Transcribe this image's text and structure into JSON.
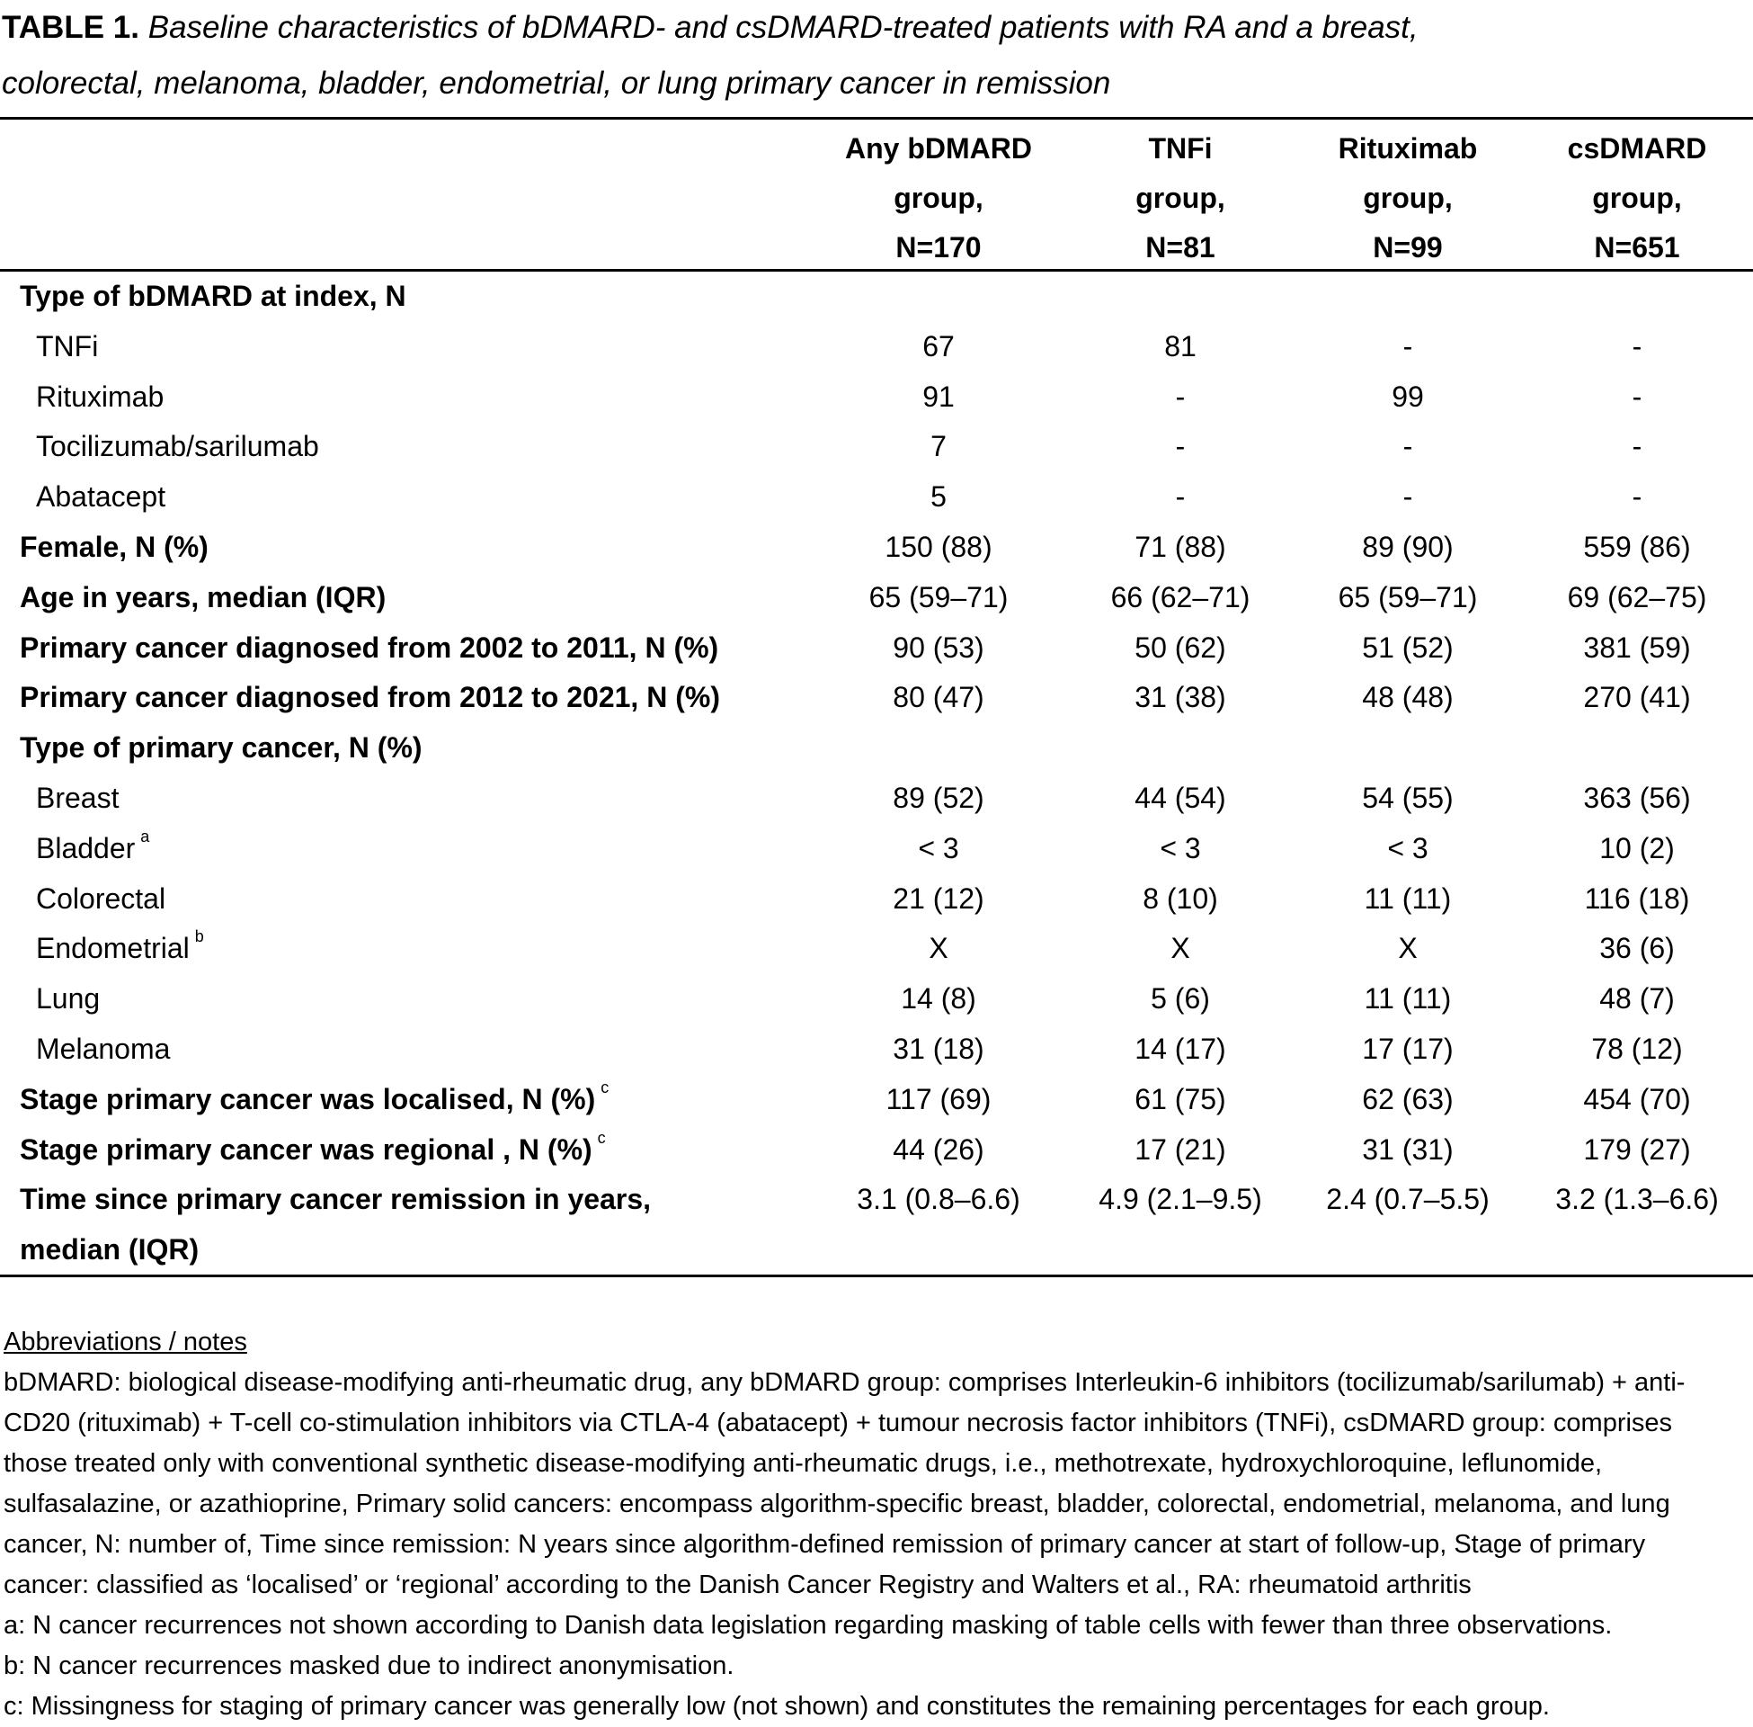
{
  "title": {
    "label": "TABLE 1.",
    "text_line1": "Baseline characteristics of bDMARD- and csDMARD-treated patients with RA and a breast,",
    "text_line2": "colorectal, melanoma, bladder, endometrial, or lung primary cancer in remission"
  },
  "columns": [
    {
      "line1": "Any bDMARD",
      "line2": "group,",
      "line3": "N=170"
    },
    {
      "line1": "TNFi",
      "line2": "group,",
      "line3": "N=81"
    },
    {
      "line1": "Rituximab",
      "line2": "group,",
      "line3": "N=99"
    },
    {
      "line1": "csDMARD",
      "line2": "group,",
      "line3": "N=651"
    }
  ],
  "rows": [
    {
      "label": "Type of bDMARD at index, N",
      "bold": true,
      "sub": false,
      "sup": "",
      "values": [
        "",
        "",
        "",
        ""
      ]
    },
    {
      "label": "TNFi",
      "bold": false,
      "sub": true,
      "sup": "",
      "values": [
        "67",
        "81",
        "-",
        "-"
      ]
    },
    {
      "label": "Rituximab",
      "bold": false,
      "sub": true,
      "sup": "",
      "values": [
        "91",
        "-",
        "99",
        "-"
      ]
    },
    {
      "label": "Tocilizumab/sarilumab",
      "bold": false,
      "sub": true,
      "sup": "",
      "values": [
        "7",
        "-",
        "-",
        "-"
      ]
    },
    {
      "label": "Abatacept",
      "bold": false,
      "sub": true,
      "sup": "",
      "values": [
        "5",
        "-",
        "-",
        "-"
      ]
    },
    {
      "label": "Female, N (%)",
      "bold": true,
      "sub": false,
      "sup": "",
      "values": [
        "150 (88)",
        "71 (88)",
        "89 (90)",
        "559 (86)"
      ]
    },
    {
      "label": "Age in years, median (IQR)",
      "bold": true,
      "sub": false,
      "sup": "",
      "values": [
        "65 (59–71)",
        "66 (62–71)",
        "65 (59–71)",
        "69 (62–75)"
      ]
    },
    {
      "label": "Primary cancer diagnosed from 2002 to 2011, N (%)",
      "bold": true,
      "sub": false,
      "sup": "",
      "values": [
        "90 (53)",
        "50 (62)",
        "51 (52)",
        "381 (59)"
      ]
    },
    {
      "label": "Primary cancer diagnosed from 2012 to 2021, N (%)",
      "bold": true,
      "sub": false,
      "sup": "",
      "values": [
        "80 (47)",
        "31 (38)",
        "48 (48)",
        "270 (41)"
      ]
    },
    {
      "label": "Type of primary cancer, N (%)",
      "bold": true,
      "sub": false,
      "sup": "",
      "values": [
        "",
        "",
        "",
        ""
      ]
    },
    {
      "label": "Breast",
      "bold": false,
      "sub": true,
      "sup": "",
      "values": [
        "89 (52)",
        "44 (54)",
        "54 (55)",
        "363 (56)"
      ]
    },
    {
      "label": "Bladder",
      "bold": false,
      "sub": true,
      "sup": "a",
      "values": [
        "< 3",
        "< 3",
        "< 3",
        "10 (2)"
      ]
    },
    {
      "label": "Colorectal",
      "bold": false,
      "sub": true,
      "sup": "",
      "values": [
        "21 (12)",
        "8 (10)",
        "11 (11)",
        "116 (18)"
      ]
    },
    {
      "label": "Endometrial",
      "bold": false,
      "sub": true,
      "sup": "b",
      "values": [
        "X",
        "X",
        "X",
        "36 (6)"
      ]
    },
    {
      "label": "Lung",
      "bold": false,
      "sub": true,
      "sup": "",
      "values": [
        "14 (8)",
        "5 (6)",
        "11 (11)",
        "48 (7)"
      ]
    },
    {
      "label": "Melanoma",
      "bold": false,
      "sub": true,
      "sup": "",
      "values": [
        "31 (18)",
        "14 (17)",
        "17 (17)",
        "78 (12)"
      ]
    },
    {
      "label": "Stage primary cancer was localised, N (%)",
      "bold": true,
      "sub": false,
      "sup": "c",
      "values": [
        "117 (69)",
        "61 (75)",
        "62 (63)",
        "454 (70)"
      ]
    },
    {
      "label": "Stage primary cancer was regional , N (%)",
      "bold": true,
      "sub": false,
      "sup": "c",
      "values": [
        "44 (26)",
        "17 (21)",
        "31 (31)",
        "179 (27)"
      ]
    },
    {
      "label": "Time since primary cancer remission in years,",
      "bold": true,
      "sub": false,
      "sup": "",
      "values": [
        "3.1 (0.8–6.6)",
        "4.9 (2.1–9.5)",
        "2.4 (0.7–5.5)",
        "3.2 (1.3–6.6)"
      ]
    },
    {
      "label": "median (IQR)",
      "bold": true,
      "sub": false,
      "sup": "",
      "values": [
        "",
        "",
        "",
        ""
      ]
    }
  ],
  "notes": {
    "heading": "Abbreviations / notes",
    "lines": [
      "bDMARD: biological disease-modifying anti-rheumatic drug, any bDMARD group: comprises Interleukin-6 inhibitors (tocilizumab/sarilumab) + anti-",
      "CD20 (rituximab) + T-cell co-stimulation inhibitors via CTLA-4 (abatacept) + tumour necrosis factor inhibitors (TNFi), csDMARD group: comprises",
      "those treated only with conventional synthetic disease-modifying anti-rheumatic drugs, i.e., methotrexate, hydroxychloroquine, leflunomide,",
      "sulfasalazine, or azathioprine, Primary solid cancers: encompass algorithm-specific breast, bladder, colorectal, endometrial, melanoma, and lung",
      "cancer, N: number of, Time since remission: N years since algorithm-defined remission of primary cancer at start of follow-up, Stage of primary",
      "cancer: classified as ‘localised’ or ‘regional’ according to the Danish Cancer Registry and  Walters et al., RA: rheumatoid arthritis",
      "a: N cancer recurrences not shown according to Danish data legislation regarding masking of table cells with fewer than three observations.",
      "b: N cancer recurrences masked due to indirect anonymisation.",
      "c: Missingness for staging of primary cancer was generally low (not shown) and constitutes the remaining percentages for each group."
    ]
  }
}
